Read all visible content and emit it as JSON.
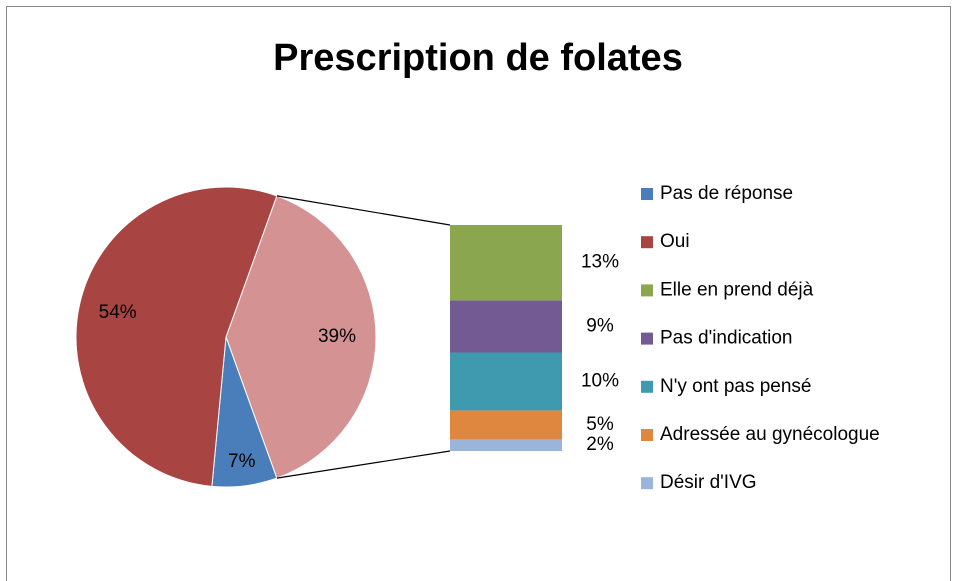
{
  "chart_data": {
    "type": "bar_of_pie",
    "title": "Prescription de folates",
    "pie": {
      "categories": [
        "Pas de réponse",
        "Oui"
      ],
      "values": [
        7,
        54
      ],
      "value_labels": [
        "7%",
        "54%"
      ],
      "colors": [
        "#4a7ebb",
        "#a84442"
      ]
    },
    "other": {
      "value": 39,
      "value_label": "39%",
      "color": "#d49392"
    },
    "bar": {
      "categories": [
        "Elle en prend déjà",
        "Pas d'indication",
        "N'y ont pas pensé",
        "Adressée au gynécologue",
        "Désir d'IVG"
      ],
      "values": [
        13,
        9,
        10,
        5,
        2
      ],
      "value_labels": [
        "13%",
        "9%",
        "10%",
        "5%",
        "2%"
      ],
      "colors": [
        "#8aa64e",
        "#735a92",
        "#3f9ab0",
        "#e0873f",
        "#9bb4d9"
      ]
    }
  }
}
